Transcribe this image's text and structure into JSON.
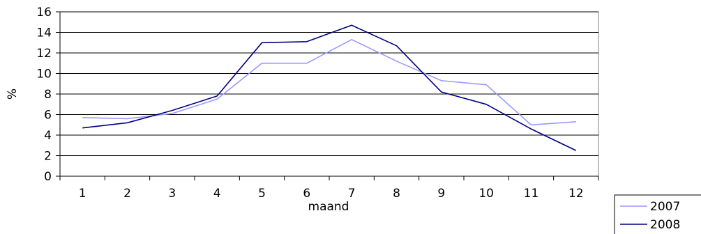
{
  "chart_data": {
    "type": "line",
    "title": "",
    "xlabel": "maand",
    "ylabel": "%",
    "categories": [
      "1",
      "2",
      "3",
      "4",
      "5",
      "6",
      "7",
      "8",
      "9",
      "10",
      "11",
      "12"
    ],
    "ylim": [
      0,
      16
    ],
    "yticks": [
      "0",
      "2",
      "4",
      "6",
      "8",
      "10",
      "12",
      "14",
      "16"
    ],
    "grid": "horizontal",
    "legend_position": "bottom-right",
    "series": [
      {
        "name": "2007",
        "color": "#9999ff",
        "values": [
          5.7,
          5.6,
          6.1,
          7.5,
          11.0,
          11.0,
          13.3,
          11.2,
          9.3,
          8.9,
          5.0,
          5.3
        ]
      },
      {
        "name": "2008",
        "color": "#000080",
        "values": [
          4.7,
          5.2,
          6.4,
          7.8,
          13.0,
          13.1,
          14.7,
          12.7,
          8.2,
          7.0,
          4.6,
          2.5
        ]
      }
    ]
  }
}
